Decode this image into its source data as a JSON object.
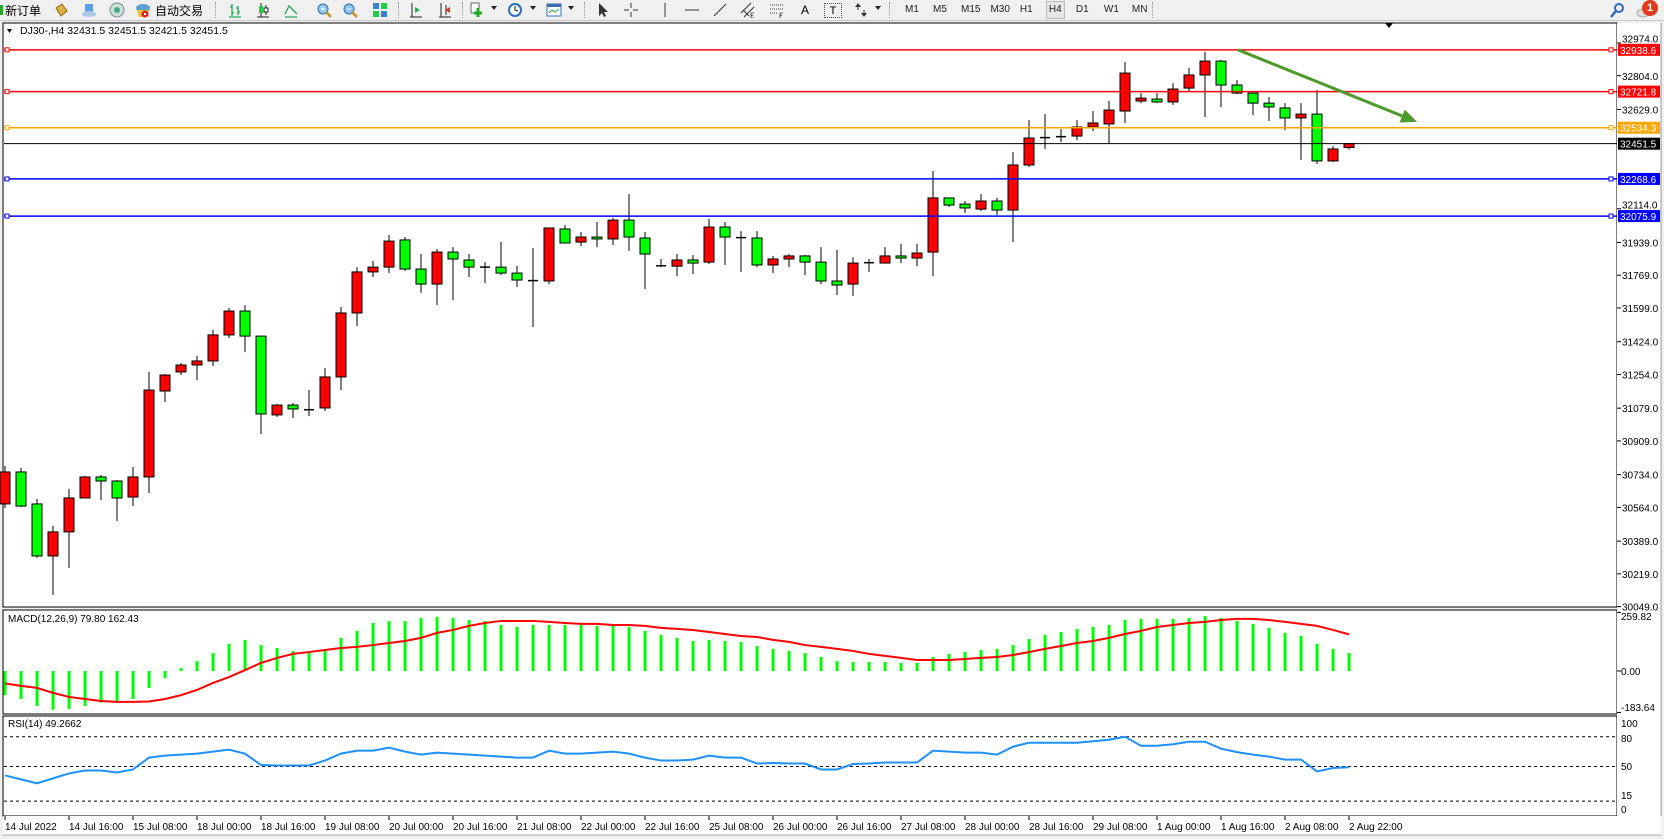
{
  "toolbar": {
    "new_order_label": "新订单",
    "auto_trading_label": "自动交易",
    "icons": [
      "new-order-icon",
      "market-watch-icon",
      "data-window-icon",
      "signals-icon",
      "auto-trading-icon",
      "bar-chart-icon",
      "candlestick-icon",
      "line-chart-icon",
      "zoom-in-icon",
      "zoom-out-icon",
      "tile-windows-icon",
      "chart-shift-icon",
      "auto-scroll-icon",
      "indicators-icon",
      "periods-icon",
      "templates-icon",
      "cursor-icon",
      "crosshair-icon",
      "vertical-line-icon",
      "horizontal-line-icon",
      "trendline-icon",
      "equidistant-channel-icon",
      "fibonacci-icon",
      "text-icon",
      "text-label-icon",
      "arrows-icon"
    ],
    "text_tool_label": "A",
    "text_label_tool": "T",
    "timeframes": [
      "M1",
      "M5",
      "M15",
      "M30",
      "H1",
      "H4",
      "D1",
      "W1",
      "MN"
    ],
    "selected_timeframe": "H4",
    "notification_count": "1"
  },
  "chart": {
    "header": "DJ30-,H4  32431.5 32451.5 32421.5 32451.5",
    "bull_color": "#ff0000",
    "bear_color": "#00ff00",
    "price_axis_labels": [
      "32974.0",
      "32804.0",
      "32629.0",
      "32114.0",
      "31939.0",
      "31769.0",
      "31599.0",
      "31424.0",
      "31254.0",
      "31079.0",
      "30909.0",
      "30734.0",
      "30564.0",
      "30389.0",
      "30219.0",
      "30049.0"
    ],
    "levels": [
      {
        "price": 32938.6,
        "label": "32938.6",
        "color": "#ff0000"
      },
      {
        "price": 32721.8,
        "label": "32721.8",
        "color": "#ff0000"
      },
      {
        "price": 32534.3,
        "label": "32534.3",
        "color": "#ffa500"
      },
      {
        "price": 32268.6,
        "label": "32268.6",
        "color": "#0000ff"
      },
      {
        "price": 32075.9,
        "label": "32075.9",
        "color": "#0000ff"
      }
    ],
    "current_price": {
      "price": 32451.5,
      "label": "32451.5",
      "color": "#000000"
    },
    "trend_arrow": {
      "color": "#4e9a2a",
      "from": {
        "bar": 77,
        "price": 32938.6
      },
      "to": {
        "bar": 88,
        "price": 32580
      }
    },
    "time_labels": [
      "14 Jul 2022",
      "14 Jul 16:00",
      "15 Jul 08:00",
      "18 Jul 00:00",
      "18 Jul 16:00",
      "19 Jul 08:00",
      "20 Jul 00:00",
      "20 Jul 16:00",
      "21 Jul 08:00",
      "22 Jul 00:00",
      "22 Jul 16:00",
      "25 Jul 08:00",
      "26 Jul 00:00",
      "26 Jul 16:00",
      "27 Jul 08:00",
      "28 Jul 00:00",
      "28 Jul 16:00",
      "29 Jul 08:00",
      "1 Aug 00:00",
      "1 Aug 16:00",
      "2 Aug 08:00",
      "2 Aug 22:00"
    ]
  },
  "macd": {
    "title": "MACD(12,26,9) 79.80 162.43",
    "axis_labels": [
      "259.82",
      "0.00",
      "-183.64"
    ],
    "range": [
      -183.64,
      259.82
    ],
    "hist_color": "#00ff00",
    "signal_color": "#ff0000",
    "histogram": [
      -107,
      -124,
      -155,
      -172,
      -168,
      -155,
      -140,
      -135,
      -124,
      -75,
      -31,
      13,
      44,
      80,
      120,
      138,
      115,
      102,
      89,
      80,
      98,
      147,
      178,
      213,
      222,
      222,
      235,
      240,
      235,
      226,
      222,
      204,
      195,
      204,
      204,
      204,
      204,
      200,
      200,
      195,
      178,
      160,
      147,
      133,
      138,
      133,
      129,
      111,
      98,
      89,
      80,
      62,
      44,
      40,
      40,
      40,
      36,
      36,
      62,
      76,
      84,
      93,
      98,
      115,
      142,
      160,
      173,
      187,
      195,
      204,
      226,
      231,
      231,
      231,
      235,
      244,
      235,
      222,
      209,
      191,
      169,
      155,
      120,
      98,
      79.8
    ],
    "signal": [
      -55,
      -66,
      -75,
      -97,
      -115,
      -124,
      -133,
      -137,
      -137,
      -135,
      -124,
      -107,
      -84,
      -53,
      -27,
      4,
      36,
      58,
      76,
      84,
      93,
      102,
      107,
      115,
      124,
      133,
      147,
      169,
      182,
      200,
      213,
      222,
      222,
      222,
      218,
      213,
      209,
      209,
      204,
      204,
      200,
      191,
      187,
      182,
      173,
      164,
      155,
      151,
      138,
      129,
      115,
      107,
      98,
      89,
      76,
      67,
      58,
      49,
      49,
      49,
      53,
      58,
      62,
      71,
      84,
      98,
      111,
      124,
      133,
      147,
      164,
      178,
      195,
      204,
      213,
      218,
      226,
      231,
      231,
      226,
      218,
      209,
      200,
      182,
      162.43
    ]
  },
  "rsi": {
    "title": "RSI(14) 49.2662",
    "axis_labels": [
      "100",
      "80",
      "50",
      "15",
      "0"
    ],
    "levels": [
      80,
      50,
      15
    ],
    "color": "#1e90ff",
    "values": [
      41,
      37,
      33,
      38,
      43,
      46,
      46,
      44,
      47,
      59,
      61,
      62,
      63,
      65,
      67,
      63,
      51.5,
      51,
      51,
      51,
      56,
      63,
      66,
      66,
      69,
      65,
      62,
      64,
      63,
      62,
      61,
      60,
      59,
      59,
      66,
      63,
      63,
      64,
      65,
      63,
      59,
      56,
      56,
      57,
      61,
      59,
      59,
      53,
      53.5,
      53,
      53,
      47,
      47,
      52.5,
      53,
      54,
      54,
      54,
      66,
      65,
      64,
      64,
      62,
      70,
      74,
      74,
      74,
      74,
      75.5,
      77,
      80,
      71,
      71,
      72.5,
      75,
      75,
      68,
      64.5,
      62,
      60,
      57,
      57,
      45,
      48.5,
      49.2662
    ]
  },
  "chart_data": {
    "type": "candlestick",
    "symbol_timeframe": "DJ30-,H4",
    "ylim": [
      30049,
      32974
    ],
    "ohlc": [
      [
        30582,
        30779,
        30561,
        30748
      ],
      [
        30748,
        30769,
        30566,
        30571
      ],
      [
        30582,
        30608,
        30302,
        30312
      ],
      [
        30312,
        30468,
        30110,
        30437
      ],
      [
        30437,
        30660,
        30250,
        30613
      ],
      [
        30613,
        30727,
        30613,
        30722
      ],
      [
        30722,
        30732,
        30602,
        30701
      ],
      [
        30701,
        30706,
        30493,
        30613
      ],
      [
        30618,
        30774,
        30571,
        30722
      ],
      [
        30722,
        31267,
        30639,
        31173
      ],
      [
        31168,
        31256,
        31111,
        31251
      ],
      [
        31267,
        31313,
        31251,
        31303
      ],
      [
        31303,
        31350,
        31225,
        31324
      ],
      [
        31324,
        31485,
        31298,
        31459
      ],
      [
        31459,
        31599,
        31443,
        31583
      ],
      [
        31583,
        31614,
        31370,
        31453
      ],
      [
        31453,
        31453,
        30945,
        31049
      ],
      [
        31044,
        31101,
        31033,
        31095
      ],
      [
        31095,
        31106,
        31028,
        31075
      ],
      [
        31069,
        31173,
        31038,
        31071
      ],
      [
        31080,
        31287,
        31064,
        31241
      ],
      [
        31241,
        31604,
        31173,
        31573
      ],
      [
        31573,
        31811,
        31505,
        31786
      ],
      [
        31786,
        31843,
        31760,
        31811
      ],
      [
        31811,
        31978,
        31780,
        31946
      ],
      [
        31952,
        31967,
        31791,
        31801
      ],
      [
        31801,
        31879,
        31677,
        31723
      ],
      [
        31723,
        31905,
        31614,
        31889
      ],
      [
        31889,
        31915,
        31640,
        31853
      ],
      [
        31848,
        31879,
        31760,
        31811
      ],
      [
        31813,
        31837,
        31728,
        31811
      ],
      [
        31811,
        31941,
        31770,
        31780
      ],
      [
        31780,
        31817,
        31708,
        31744
      ],
      [
        31739,
        31910,
        31500,
        31741
      ],
      [
        31739,
        32014,
        31723,
        32014
      ],
      [
        32009,
        32029,
        31936,
        31936
      ],
      [
        31941,
        31993,
        31920,
        31967
      ],
      [
        31967,
        32045,
        31915,
        31957
      ],
      [
        31957,
        32066,
        31926,
        32055
      ],
      [
        32055,
        32190,
        31895,
        31967
      ],
      [
        31962,
        31993,
        31697,
        31879
      ],
      [
        31816,
        31853,
        31811,
        31818
      ],
      [
        31816,
        31879,
        31765,
        31848
      ],
      [
        31848,
        31874,
        31775,
        31832
      ],
      [
        31837,
        32061,
        31827,
        32019
      ],
      [
        32019,
        32045,
        31822,
        31967
      ],
      [
        31962,
        31998,
        31786,
        31964
      ],
      [
        31962,
        31998,
        31811,
        31822
      ],
      [
        31822,
        31869,
        31780,
        31853
      ],
      [
        31853,
        31879,
        31811,
        31869
      ],
      [
        31869,
        31874,
        31770,
        31837
      ],
      [
        31837,
        31915,
        31723,
        31739
      ],
      [
        31739,
        31900,
        31666,
        31718
      ],
      [
        31723,
        31863,
        31661,
        31832
      ],
      [
        31832,
        31853,
        31786,
        31834
      ],
      [
        31832,
        31915,
        31832,
        31869
      ],
      [
        31869,
        31931,
        31832,
        31858
      ],
      [
        31858,
        31931,
        31816,
        31884
      ],
      [
        31889,
        32310,
        31765,
        32170
      ],
      [
        32170,
        32170,
        32123,
        32133
      ],
      [
        32138,
        32154,
        32092,
        32118
      ],
      [
        32112,
        32190,
        32102,
        32154
      ],
      [
        32154,
        32170,
        32081,
        32107
      ],
      [
        32107,
        32408,
        31941,
        32341
      ],
      [
        32341,
        32574,
        32330,
        32481
      ],
      [
        32481,
        32605,
        32424,
        32483
      ],
      [
        32486,
        32528,
        32460,
        32488
      ],
      [
        32491,
        32574,
        32470,
        32538
      ],
      [
        32538,
        32621,
        32517,
        32559
      ],
      [
        32554,
        32673,
        32450,
        32626
      ],
      [
        32621,
        32875,
        32559,
        32818
      ],
      [
        32673,
        32714,
        32662,
        32688
      ],
      [
        32683,
        32714,
        32662,
        32668
      ],
      [
        32668,
        32766,
        32652,
        32735
      ],
      [
        32740,
        32844,
        32725,
        32808
      ],
      [
        32808,
        32927,
        32590,
        32880
      ],
      [
        32880,
        32886,
        32642,
        32756
      ],
      [
        32756,
        32782,
        32709,
        32714
      ],
      [
        32714,
        32714,
        32600,
        32662
      ],
      [
        32662,
        32694,
        32569,
        32642
      ],
      [
        32637,
        32662,
        32522,
        32585
      ],
      [
        32585,
        32662,
        32367,
        32605
      ],
      [
        32605,
        32730,
        32346,
        32362
      ],
      [
        32362,
        32439,
        32356,
        32424
      ],
      [
        32431.5,
        32451.5,
        32421.5,
        32451.5
      ]
    ]
  }
}
